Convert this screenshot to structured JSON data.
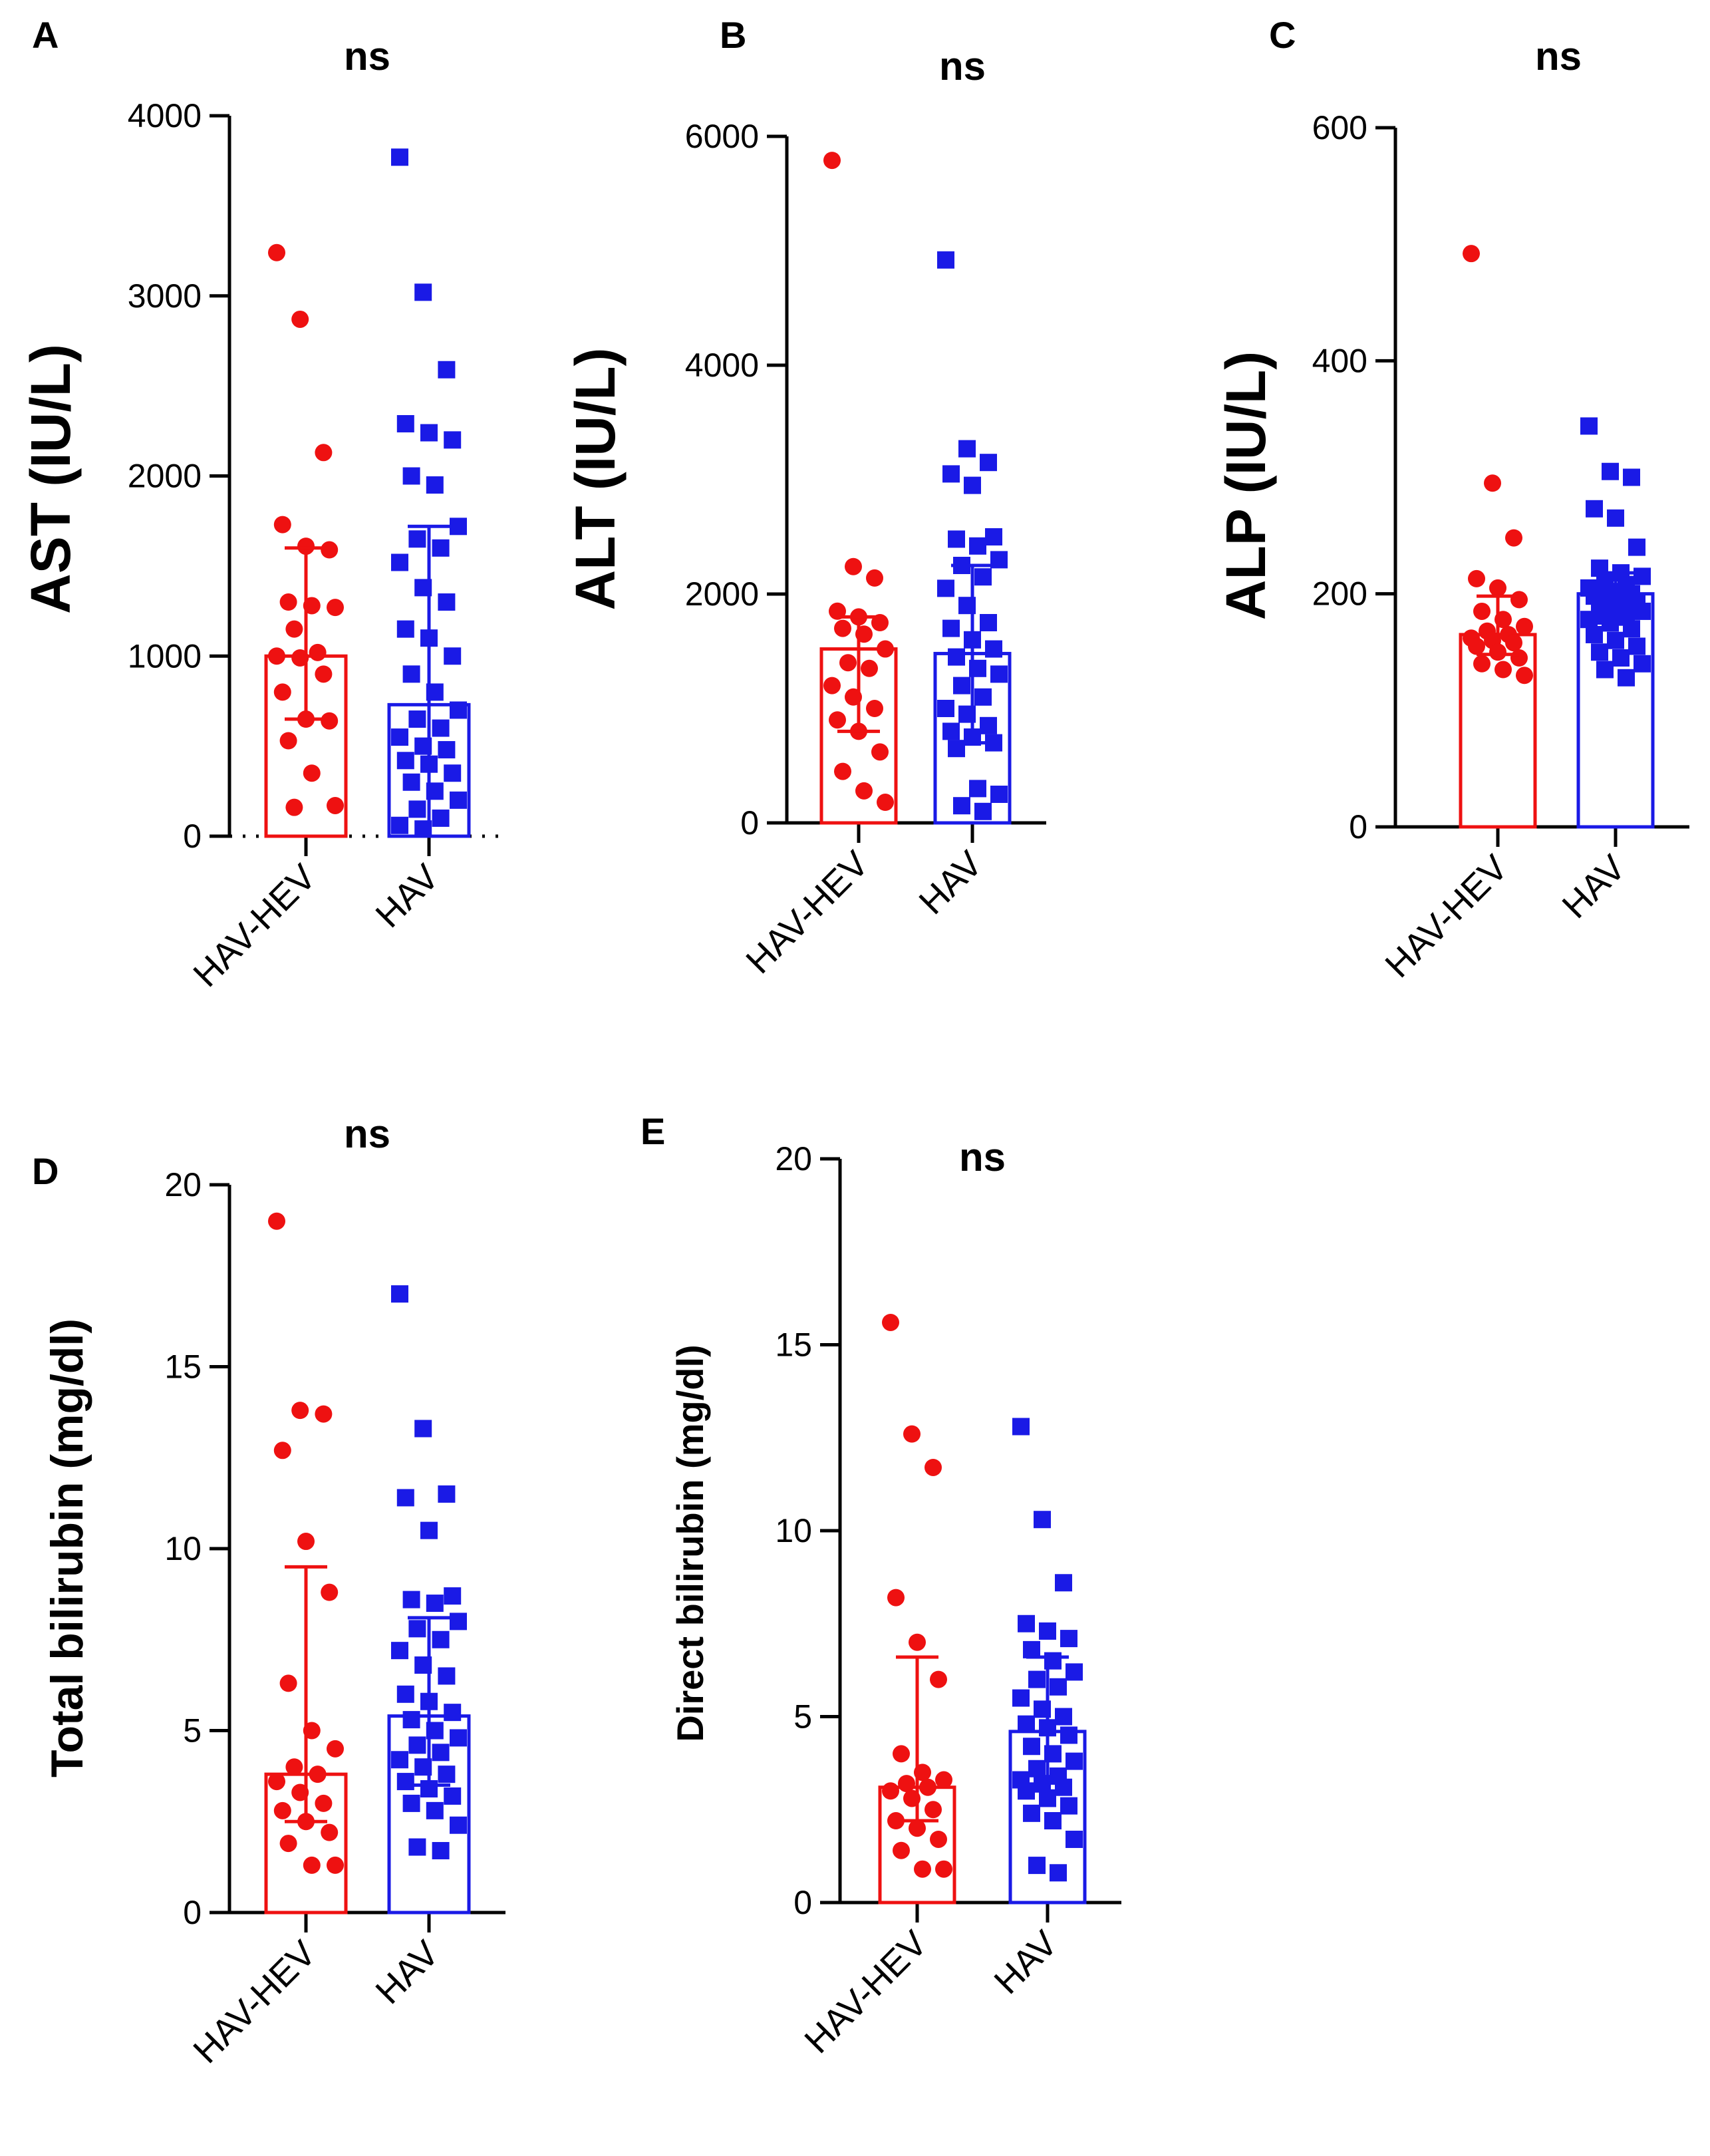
{
  "figure": {
    "colors": {
      "HAV-HEV": "#ee1111",
      "HAV": "#1a1ae6",
      "axis": "#000000"
    }
  },
  "chart_data": [
    {
      "panel": "A",
      "type": "bar",
      "significance": "ns",
      "ylabel": "AST (IU/L)",
      "ylim": [
        0,
        4000
      ],
      "yticks": [
        "0",
        "1000",
        "2000",
        "3000",
        "4000"
      ],
      "categories": [
        "HAV-HEV",
        "HAV"
      ],
      "series": [
        {
          "name": "HAV-HEV",
          "marker": "circle",
          "mean": 1000,
          "error_low": 650,
          "error_high": 1600,
          "points": [
            3240,
            2870,
            2130,
            1730,
            1610,
            1590,
            1300,
            1280,
            1270,
            1150,
            1020,
            1000,
            990,
            900,
            800,
            650,
            640,
            530,
            350,
            170,
            160
          ]
        },
        {
          "name": "HAV",
          "marker": "square",
          "mean": 730,
          "error_low": 0,
          "error_high": 1720,
          "points": [
            3770,
            3020,
            2590,
            2290,
            2240,
            2200,
            2000,
            1950,
            1720,
            1650,
            1600,
            1520,
            1380,
            1300,
            1150,
            1100,
            1000,
            900,
            800,
            700,
            650,
            600,
            550,
            500,
            480,
            420,
            400,
            350,
            300,
            250,
            200,
            150,
            100,
            60,
            40
          ]
        }
      ]
    },
    {
      "panel": "B",
      "type": "bar",
      "significance": "ns",
      "ylabel": "ALT (IU/L)",
      "ylim": [
        0,
        6000
      ],
      "yticks": [
        "0",
        "2000",
        "4000",
        "6000"
      ],
      "categories": [
        "HAV-HEV",
        "HAV"
      ],
      "series": [
        {
          "name": "HAV-HEV",
          "marker": "circle",
          "mean": 1520,
          "error_low": 800,
          "error_high": 1800,
          "points": [
            5790,
            2240,
            2140,
            1850,
            1800,
            1750,
            1700,
            1650,
            1520,
            1400,
            1350,
            1200,
            1100,
            1000,
            900,
            800,
            620,
            450,
            280,
            180
          ]
        },
        {
          "name": "HAV",
          "marker": "square",
          "mean": 1480,
          "error_low": 700,
          "error_high": 2250,
          "points": [
            4920,
            3270,
            3150,
            3050,
            2950,
            2500,
            2480,
            2420,
            2300,
            2250,
            2150,
            2050,
            1900,
            1750,
            1700,
            1600,
            1520,
            1450,
            1350,
            1300,
            1200,
            1100,
            1000,
            950,
            850,
            800,
            750,
            700,
            650,
            300,
            250,
            150,
            100
          ]
        }
      ]
    },
    {
      "panel": "C",
      "type": "bar",
      "significance": "ns",
      "ylabel": "ALP (IU/L)",
      "ylim": [
        0,
        600
      ],
      "yticks": [
        "0",
        "200",
        "400",
        "600"
      ],
      "categories": [
        "HAV-HEV",
        "HAV"
      ],
      "series": [
        {
          "name": "HAV-HEV",
          "marker": "circle",
          "mean": 165,
          "error_low": 148,
          "error_high": 198,
          "points": [
            492,
            295,
            248,
            213,
            205,
            195,
            185,
            178,
            172,
            168,
            165,
            162,
            160,
            158,
            155,
            150,
            145,
            140,
            135,
            130
          ]
        },
        {
          "name": "HAV",
          "marker": "square",
          "mean": 200,
          "error_low": 175,
          "error_high": 218,
          "points": [
            344,
            305,
            300,
            273,
            265,
            240,
            222,
            218,
            215,
            210,
            208,
            205,
            202,
            200,
            198,
            196,
            193,
            190,
            188,
            185,
            182,
            180,
            178,
            175,
            170,
            165,
            160,
            155,
            150,
            145,
            140,
            135,
            128
          ]
        }
      ]
    },
    {
      "panel": "D",
      "type": "bar",
      "significance": "ns",
      "ylabel": "Total bilirubin (mg/dl)",
      "ylim": [
        0,
        20
      ],
      "yticks": [
        "0",
        "5",
        "10",
        "15",
        "20"
      ],
      "categories": [
        "HAV-HEV",
        "HAV"
      ],
      "series": [
        {
          "name": "HAV-HEV",
          "marker": "circle",
          "mean": 3.8,
          "error_low": 2.5,
          "error_high": 9.5,
          "points": [
            19.0,
            13.8,
            13.7,
            12.7,
            10.2,
            8.8,
            6.3,
            5.0,
            4.5,
            4.0,
            3.8,
            3.6,
            3.3,
            3.0,
            2.8,
            2.5,
            2.2,
            1.9,
            1.3,
            1.3
          ]
        },
        {
          "name": "HAV",
          "marker": "square",
          "mean": 5.4,
          "error_low": 3.5,
          "error_high": 8.1,
          "points": [
            17.0,
            13.3,
            11.5,
            11.4,
            10.5,
            8.7,
            8.6,
            8.5,
            8.0,
            7.8,
            7.5,
            7.2,
            6.8,
            6.5,
            6.0,
            5.8,
            5.5,
            5.3,
            5.0,
            4.8,
            4.6,
            4.4,
            4.2,
            4.0,
            3.8,
            3.6,
            3.4,
            3.2,
            3.0,
            2.8,
            2.4,
            1.8,
            1.7
          ]
        }
      ]
    },
    {
      "panel": "E",
      "type": "bar",
      "significance": "ns",
      "ylabel": "Direct bilirubin (mg/dl)",
      "ylim": [
        0,
        20
      ],
      "yticks": [
        "0",
        "5",
        "10",
        "15",
        "20"
      ],
      "categories": [
        "HAV-HEV",
        "HAV"
      ],
      "series": [
        {
          "name": "HAV-HEV",
          "marker": "circle",
          "mean": 3.1,
          "error_low": 2.2,
          "error_high": 6.6,
          "points": [
            15.6,
            12.6,
            11.7,
            8.2,
            7.0,
            6.0,
            4.0,
            3.5,
            3.3,
            3.2,
            3.1,
            3.0,
            2.8,
            2.5,
            2.2,
            2.0,
            1.7,
            1.4,
            0.9,
            0.9
          ]
        },
        {
          "name": "HAV",
          "marker": "square",
          "mean": 4.6,
          "error_low": 3.0,
          "error_high": 6.6,
          "points": [
            12.8,
            10.3,
            8.6,
            7.5,
            7.3,
            7.1,
            6.8,
            6.5,
            6.2,
            6.0,
            5.8,
            5.5,
            5.2,
            5.0,
            4.8,
            4.7,
            4.5,
            4.2,
            4.0,
            3.8,
            3.6,
            3.4,
            3.3,
            3.2,
            3.1,
            3.0,
            2.8,
            2.6,
            2.4,
            2.2,
            1.7,
            1.0,
            0.8
          ]
        }
      ]
    }
  ]
}
